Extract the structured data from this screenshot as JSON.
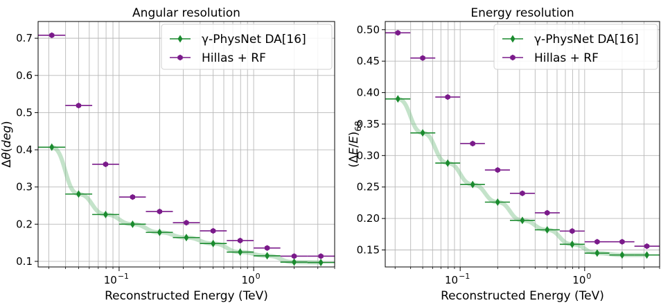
{
  "chart_data": [
    {
      "type": "scatter",
      "title": "Angular resolution",
      "xlabel": "Reconstructed Energy (TeV)",
      "ylabel": "Δθ(deg)",
      "xscale": "log",
      "xlim": [
        0.025,
        4.0
      ],
      "ylim": [
        0.085,
        0.745
      ],
      "xticks": [
        {
          "value": 0.1,
          "label": "10",
          "exp": "−1"
        },
        {
          "value": 1.0,
          "label": "10",
          "exp": "0"
        }
      ],
      "yticks": [
        "0.1",
        "0.2",
        "0.3",
        "0.4",
        "0.5",
        "0.6",
        "0.7"
      ],
      "grid": true,
      "legend_position": "top-right",
      "series": [
        {
          "name": "γ-PhysNet DA[16]",
          "color": "#1a8a2e",
          "marker": "diamond",
          "x": [
            0.0316,
            0.05,
            0.0794,
            0.126,
            0.2,
            0.316,
            0.5,
            0.794,
            1.26,
            2.0,
            3.16
          ],
          "xlow": [
            0.025,
            0.0398,
            0.0631,
            0.1,
            0.158,
            0.251,
            0.398,
            0.631,
            1.0,
            1.58,
            2.51
          ],
          "xhigh": [
            0.0398,
            0.0631,
            0.1,
            0.158,
            0.251,
            0.398,
            0.631,
            1.0,
            1.58,
            2.51,
            3.98
          ],
          "y": [
            0.407,
            0.281,
            0.226,
            0.2,
            0.178,
            0.164,
            0.148,
            0.125,
            0.115,
            0.098,
            0.097
          ]
        },
        {
          "name": "Hillas + RF",
          "color": "#7a1a8a",
          "marker": "hexagon",
          "x": [
            0.0316,
            0.05,
            0.0794,
            0.126,
            0.2,
            0.316,
            0.5,
            0.794,
            1.26,
            2.0,
            3.16
          ],
          "xlow": [
            0.025,
            0.0398,
            0.0631,
            0.1,
            0.158,
            0.251,
            0.398,
            0.631,
            1.0,
            1.58,
            2.51
          ],
          "xhigh": [
            0.0398,
            0.0631,
            0.1,
            0.158,
            0.251,
            0.398,
            0.631,
            1.0,
            1.58,
            2.51,
            3.98
          ],
          "y": [
            0.708,
            0.519,
            0.361,
            0.273,
            0.234,
            0.204,
            0.182,
            0.156,
            0.136,
            0.114,
            0.114
          ]
        }
      ]
    },
    {
      "type": "scatter",
      "title": "Energy resolution",
      "xlabel": "Reconstructed Energy (TeV)",
      "ylabel": "(ΔE/E)68",
      "xscale": "log",
      "xlim": [
        0.025,
        4.0
      ],
      "ylim": [
        0.123,
        0.513
      ],
      "xticks": [
        {
          "value": 0.1,
          "label": "10",
          "exp": "−1"
        },
        {
          "value": 1.0,
          "label": "10",
          "exp": "0"
        }
      ],
      "yticks": [
        "0.15",
        "0.20",
        "0.25",
        "0.30",
        "0.35",
        "0.40",
        "0.45",
        "0.50"
      ],
      "grid": true,
      "legend_position": "top-right",
      "series": [
        {
          "name": "γ-PhysNet DA[16]",
          "color": "#1a8a2e",
          "marker": "diamond",
          "x": [
            0.0316,
            0.05,
            0.0794,
            0.126,
            0.2,
            0.316,
            0.5,
            0.794,
            1.26,
            2.0,
            3.16
          ],
          "xlow": [
            0.025,
            0.0398,
            0.0631,
            0.1,
            0.158,
            0.251,
            0.398,
            0.631,
            1.0,
            1.58,
            2.51
          ],
          "xhigh": [
            0.0398,
            0.0631,
            0.1,
            0.158,
            0.251,
            0.398,
            0.631,
            1.0,
            1.58,
            2.51,
            3.98
          ],
          "y": [
            0.39,
            0.336,
            0.288,
            0.254,
            0.226,
            0.197,
            0.182,
            0.159,
            0.145,
            0.142,
            0.142
          ]
        },
        {
          "name": "Hillas + RF",
          "color": "#7a1a8a",
          "marker": "hexagon",
          "x": [
            0.0316,
            0.05,
            0.0794,
            0.126,
            0.2,
            0.316,
            0.5,
            0.794,
            1.26,
            2.0,
            3.16
          ],
          "xlow": [
            0.025,
            0.0398,
            0.0631,
            0.1,
            0.158,
            0.251,
            0.398,
            0.631,
            1.0,
            1.58,
            2.51
          ],
          "xhigh": [
            0.0398,
            0.0631,
            0.1,
            0.158,
            0.251,
            0.398,
            0.631,
            1.0,
            1.58,
            2.51,
            3.98
          ],
          "y": [
            0.495,
            0.455,
            0.393,
            0.319,
            0.277,
            0.24,
            0.209,
            0.18,
            0.163,
            0.163,
            0.156
          ]
        }
      ]
    }
  ]
}
